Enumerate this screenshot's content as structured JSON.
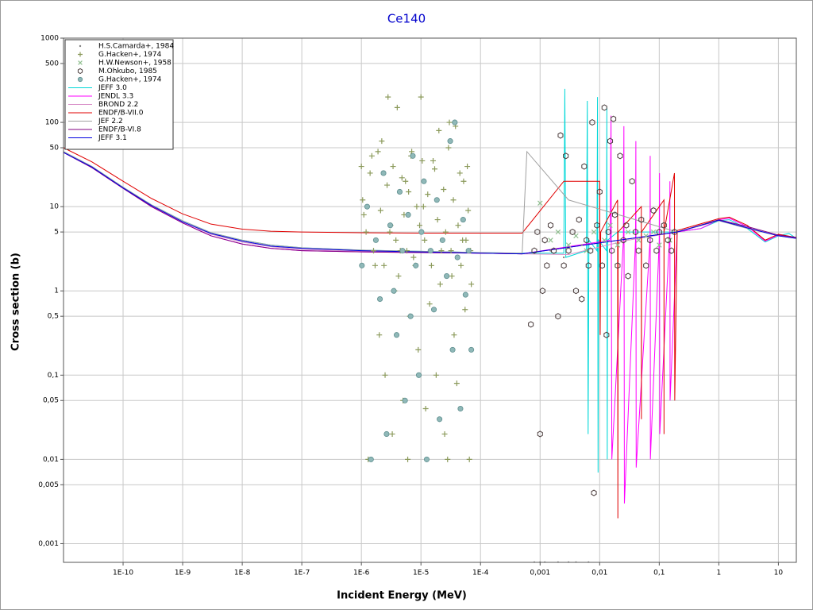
{
  "chart_data": {
    "type": "line",
    "title": "Ce140",
    "x_label": "Incident Energy (MeV)",
    "y_label": "Cross section (b)",
    "x_scale": "log",
    "y_scale": "log",
    "grid": true,
    "legend": "upper left",
    "xlim": [
      1e-11,
      20
    ],
    "ylim": [
      0.0006,
      1000
    ],
    "xticks": [
      {
        "value": 1e-10,
        "label": "1E-10"
      },
      {
        "value": 1e-09,
        "label": "1E-9"
      },
      {
        "value": 1e-08,
        "label": "1E-8"
      },
      {
        "value": 1e-07,
        "label": "1E-7"
      },
      {
        "value": 1e-06,
        "label": "1E-6"
      },
      {
        "value": 1e-05,
        "label": "1E-5"
      },
      {
        "value": 0.0001,
        "label": "1E-4"
      },
      {
        "value": 0.001,
        "label": "0,001"
      },
      {
        "value": 0.01,
        "label": "0,01"
      },
      {
        "value": 0.1,
        "label": "0,1"
      },
      1,
      10
    ],
    "yticks": [
      1000,
      500,
      100,
      50,
      10,
      5,
      1,
      {
        "value": 0.5,
        "label": "0,5"
      },
      {
        "value": 0.1,
        "label": "0,1"
      },
      {
        "value": 0.05,
        "label": "0,05"
      },
      {
        "value": 0.01,
        "label": "0,01"
      },
      {
        "value": 0.005,
        "label": "0,005"
      },
      {
        "value": 0.001,
        "label": "0,001"
      }
    ],
    "series": [
      {
        "name": "H.S.Camarda+, 1984",
        "type": "scatter",
        "marker": "dot",
        "color": "#808080",
        "x": [
          0.0008,
          0.001,
          0.0012,
          0.0015,
          0.002,
          0.0025,
          0.003,
          0.004,
          0.005,
          0.0065
        ],
        "values": [
          0.0006,
          0.0006,
          0.0006,
          3,
          0.0006,
          2.5,
          0.0006,
          0.0006,
          3.5,
          0.0006
        ]
      },
      {
        "name": "G.Hacken+, 1974",
        "type": "scatter",
        "marker": "plus",
        "color": "#8b9a5b",
        "x": [
          1e-06,
          1.1e-06,
          1.3e-06,
          1.5e-06,
          1.7e-06,
          2e-06,
          2.2e-06,
          2.5e-06,
          2.8e-06,
          3e-06,
          3.3e-06,
          3.6e-06,
          4e-06,
          4.5e-06,
          5e-06,
          5.5e-06,
          6e-06,
          6.5e-06,
          7e-06,
          8e-06,
          9e-06,
          1e-05,
          1.1e-05,
          1.2e-05,
          1.4e-05,
          1.6e-05,
          1.8e-05,
          2e-05,
          2.2e-05,
          2.5e-05,
          2.8e-05,
          3e-05,
          3.3e-05,
          3.6e-05,
          4e-05,
          4.5e-05,
          5e-05,
          5.5e-05,
          6e-05,
          6.5e-05,
          7e-05,
          1.05e-06,
          1.2e-06,
          1.4e-06,
          1.6e-06,
          1.9e-06,
          2.1e-06,
          2.4e-06,
          2.7e-06,
          3.1e-06,
          3.4e-06,
          3.8e-06,
          4.2e-06,
          4.8e-06,
          5.2e-06,
          5.8e-06,
          6.2e-06,
          6.8e-06,
          7.5e-06,
          8.5e-06,
          9.5e-06,
          1.05e-05,
          1.15e-05,
          1.3e-05,
          1.5e-05,
          1.7e-05,
          1.9e-05,
          2.1e-05,
          2.4e-05,
          2.6e-05,
          2.9e-05,
          3.2e-05,
          3.5e-05,
          3.8e-05,
          4.2e-05,
          4.7e-05,
          5.2e-05,
          5.7e-05,
          6.2e-05,
          6.8e-05
        ],
        "values": [
          30,
          8,
          0.01,
          40,
          2,
          0.3,
          60,
          0.1,
          200,
          5,
          0.02,
          1,
          150,
          3,
          0.05,
          20,
          0.01,
          0.5,
          45,
          2,
          0.2,
          200,
          10,
          0.04,
          0.7,
          35,
          0.1,
          80,
          3,
          0.02,
          0.01,
          100,
          1.5,
          0.3,
          0.08,
          25,
          4,
          0.6,
          30,
          0.01,
          1.2,
          12,
          5,
          25,
          3,
          45,
          9,
          2,
          18,
          6,
          30,
          4,
          1.5,
          22,
          8,
          3,
          15,
          40,
          2.5,
          10,
          6,
          35,
          4,
          14,
          2,
          28,
          7,
          1.2,
          16,
          5,
          50,
          3,
          12,
          90,
          6,
          2,
          20,
          4,
          9,
          3
        ]
      },
      {
        "name": "H.W.Newson+, 1958",
        "type": "scatter",
        "marker": "x",
        "color": "#8fbf8f",
        "x": [
          0.001,
          0.0015,
          0.002,
          0.003,
          0.004,
          0.006,
          0.008,
          0.012,
          0.015,
          0.02,
          0.03,
          0.045,
          0.06,
          0.08,
          0.1,
          0.15
        ],
        "values": [
          11,
          4,
          5,
          3.5,
          4.5,
          3,
          5,
          4,
          6,
          3.5,
          5,
          4,
          4.5,
          5,
          3.5,
          4
        ]
      },
      {
        "name": "M.Ohkubo, 1985",
        "type": "scatter",
        "marker": "hexagon",
        "color": "#4a3c3c",
        "x": [
          0.0007,
          0.0008,
          0.0009,
          0.001,
          0.0011,
          0.0012,
          0.0013,
          0.0015,
          0.0017,
          0.002,
          0.0022,
          0.0025,
          0.0027,
          0.003,
          0.0035,
          0.004,
          0.0045,
          0.005,
          0.0055,
          0.006,
          0.0065,
          0.007,
          0.0075,
          0.008,
          0.009,
          0.01,
          0.011,
          0.012,
          0.013,
          0.014,
          0.015,
          0.016,
          0.017,
          0.018,
          0.02,
          0.022,
          0.025,
          0.028,
          0.03,
          0.035,
          0.04,
          0.045,
          0.05,
          0.06,
          0.07,
          0.08,
          0.09,
          0.1,
          0.12,
          0.14,
          0.16,
          0.18
        ],
        "values": [
          0.4,
          3,
          5,
          0.02,
          1,
          4,
          2,
          6,
          3,
          0.5,
          70,
          2,
          40,
          3,
          5,
          1,
          7,
          0.8,
          30,
          4,
          2,
          3,
          100,
          0.004,
          6,
          15,
          2,
          150,
          0.3,
          5,
          60,
          3,
          110,
          8,
          2,
          40,
          4,
          6,
          1.5,
          20,
          5,
          3,
          7,
          2,
          4,
          9,
          3,
          5,
          6,
          4,
          3,
          5
        ]
      },
      {
        "name": "G.Hacken+, 1974",
        "type": "scatter",
        "marker": "circle",
        "color": "#8fb8b8",
        "x": [
          1.02e-06,
          1.25e-06,
          1.45e-06,
          1.75e-06,
          2.05e-06,
          2.35e-06,
          2.65e-06,
          3.05e-06,
          3.5e-06,
          3.9e-06,
          4.4e-06,
          4.9e-06,
          5.4e-06,
          6.1e-06,
          6.7e-06,
          7.3e-06,
          8.2e-06,
          9.2e-06,
          1.02e-05,
          1.12e-05,
          1.25e-05,
          1.45e-05,
          1.65e-05,
          1.85e-05,
          2.05e-05,
          2.3e-05,
          2.7e-05,
          3.1e-05,
          3.4e-05,
          3.7e-05,
          4.1e-05,
          4.6e-05,
          5.1e-05,
          5.6e-05,
          6.3e-05,
          7e-05
        ],
        "values": [
          2,
          10,
          0.01,
          4,
          0.8,
          25,
          0.02,
          6,
          1,
          0.3,
          15,
          3,
          0.05,
          8,
          0.5,
          40,
          2,
          0.1,
          5,
          20,
          0.01,
          3,
          0.6,
          12,
          0.03,
          4,
          1.5,
          60,
          0.2,
          100,
          2.5,
          0.04,
          7,
          0.9,
          3,
          0.2
        ]
      },
      {
        "name": "JEFF 3.0",
        "type": "line",
        "color": "#00d8d8",
        "x": [
          1e-11,
          3e-11,
          1e-10,
          3e-10,
          1e-09,
          3e-09,
          1e-08,
          3e-08,
          1e-07,
          1e-06,
          1e-05,
          0.0001,
          0.0005,
          0.0025,
          0.0026,
          0.0027,
          0.006,
          0.0062,
          0.0064,
          0.0066,
          0.009,
          0.0092,
          0.0094,
          0.0096,
          0.013,
          0.0132,
          0.0134,
          0.0136,
          0.02,
          0.05,
          0.2,
          0.5,
          1,
          1.5,
          3,
          6,
          10,
          15,
          20
        ],
        "values": [
          45,
          30,
          17,
          10.5,
          6.8,
          4.9,
          4.0,
          3.5,
          3.25,
          3.05,
          2.95,
          2.85,
          2.8,
          2.8,
          250,
          2.5,
          3,
          180,
          0.02,
          4,
          3,
          200,
          0.007,
          4,
          3,
          150,
          0.01,
          4,
          5,
          5,
          5,
          5.5,
          6.8,
          7,
          5.5,
          3.8,
          4.5,
          4.8,
          4.2
        ]
      },
      {
        "name": "JENDL 3.3",
        "type": "line",
        "color": "#ff00ff",
        "x": [
          1e-11,
          3e-11,
          1e-10,
          3e-10,
          1e-09,
          3e-09,
          1e-08,
          3e-08,
          1e-07,
          1e-06,
          1e-05,
          0.0001,
          0.0005,
          0.015,
          0.0155,
          0.016,
          0.025,
          0.0255,
          0.026,
          0.04,
          0.0405,
          0.041,
          0.07,
          0.0705,
          0.071,
          0.1,
          0.101,
          0.102,
          0.15,
          0.151,
          0.152,
          0.2,
          0.5,
          1,
          1.5,
          3,
          6,
          10,
          20
        ],
        "values": [
          44,
          29,
          16.5,
          10,
          6.4,
          4.5,
          3.6,
          3.2,
          3.0,
          2.9,
          2.85,
          2.8,
          2.75,
          4,
          120,
          0.01,
          4,
          90,
          0.003,
          4,
          60,
          0.008,
          4,
          40,
          0.01,
          4,
          25,
          0.02,
          5,
          20,
          0.05,
          5,
          5.5,
          7,
          7.3,
          5.8,
          3.9,
          4.6,
          4.3
        ]
      },
      {
        "name": "BROND 2.2",
        "type": "line",
        "color": "#d890c8",
        "x": [
          1e-11,
          3e-11,
          1e-10,
          3e-10,
          1e-09,
          3e-09,
          1e-08,
          3e-08,
          1e-07,
          1e-06,
          1e-05,
          0.0001,
          0.0005,
          0.003,
          0.03,
          0.2,
          1,
          3,
          10,
          20
        ],
        "values": [
          44.5,
          29.5,
          16.8,
          10.3,
          6.6,
          4.7,
          3.8,
          3.35,
          3.1,
          2.95,
          2.9,
          2.8,
          2.75,
          2.7,
          4,
          5,
          6.9,
          5.6,
          4.5,
          4.2
        ]
      },
      {
        "name": "ENDF/B-VII.0",
        "type": "line",
        "color": "#e00000",
        "x": [
          1e-11,
          3e-11,
          1e-10,
          3e-10,
          1e-09,
          3e-09,
          1e-08,
          3e-08,
          1e-07,
          1e-06,
          1e-05,
          0.0001,
          0.0005,
          0.0025,
          0.01,
          0.0102,
          0.0104,
          0.02,
          0.0202,
          0.0204,
          0.05,
          0.0502,
          0.0504,
          0.12,
          0.1202,
          0.1204,
          0.18,
          0.182,
          0.2,
          1,
          1.5,
          3,
          6,
          10,
          20
        ],
        "values": [
          50,
          34,
          20,
          12.5,
          8.2,
          6.2,
          5.4,
          5.1,
          5.0,
          4.9,
          4.85,
          4.85,
          4.85,
          20,
          20,
          0.3,
          5,
          12,
          0.002,
          5,
          10,
          0.03,
          5,
          12,
          0.02,
          5,
          25,
          0.05,
          5.2,
          7.2,
          7.5,
          6,
          4,
          4.7,
          4.3
        ]
      },
      {
        "name": "JEF 2.2",
        "type": "line",
        "color": "#a0a0a0",
        "x": [
          1e-11,
          3e-11,
          1e-10,
          3e-10,
          1e-09,
          3e-09,
          1e-08,
          3e-08,
          1e-07,
          1e-06,
          1e-05,
          0.0001,
          0.0005,
          0.0006,
          0.003,
          0.2,
          1,
          3,
          10,
          20
        ],
        "values": [
          45,
          30,
          17,
          10.5,
          6.8,
          4.9,
          4.0,
          3.5,
          3.25,
          3.05,
          2.95,
          2.85,
          2.8,
          45,
          12,
          5,
          6.8,
          5.5,
          4.5,
          4.2
        ]
      },
      {
        "name": "ENDF/B-VI.8",
        "type": "line",
        "color": "#800080",
        "x": [
          1e-11,
          3e-11,
          1e-10,
          3e-10,
          1e-09,
          3e-09,
          1e-08,
          3e-08,
          1e-07,
          1e-06,
          1e-05,
          0.0001,
          0.0005,
          0.2,
          1,
          3,
          10,
          20
        ],
        "values": [
          44,
          29,
          16.5,
          10,
          6.4,
          4.5,
          3.6,
          3.2,
          3.0,
          2.9,
          2.85,
          2.8,
          2.75,
          5,
          7,
          5.8,
          4.6,
          4.3
        ]
      },
      {
        "name": "JEFF 3.1",
        "type": "line",
        "color": "#0000e0",
        "x": [
          1e-11,
          3e-11,
          1e-10,
          3e-10,
          1e-09,
          3e-09,
          1e-08,
          3e-08,
          1e-07,
          1e-06,
          1e-05,
          0.0001,
          0.0005,
          0.2,
          1,
          3,
          10,
          20
        ],
        "values": [
          44,
          29.5,
          16.7,
          10.3,
          6.6,
          4.8,
          3.9,
          3.4,
          3.2,
          3.0,
          2.9,
          2.8,
          2.75,
          5,
          6.9,
          5.6,
          4.5,
          4.2
        ]
      }
    ]
  }
}
